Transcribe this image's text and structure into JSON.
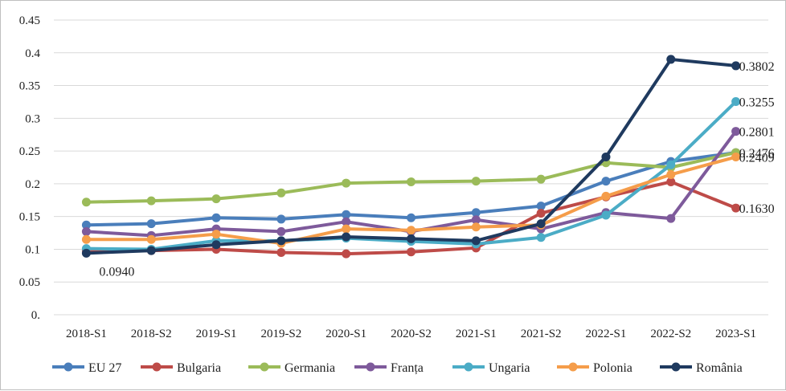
{
  "chart_data": {
    "type": "line",
    "title": "",
    "xlabel": "",
    "ylabel": "",
    "ylim": [
      0,
      0.45
    ],
    "y_ticks": [
      0,
      0.05,
      0.1,
      0.15,
      0.2,
      0.25,
      0.3,
      0.35,
      0.4,
      0.45
    ],
    "y_tick_labels": [
      "0.",
      "0.05",
      "0.1",
      "0.15",
      "0.2",
      "0.25",
      "0.3",
      "0.35",
      "0.4",
      "0.45"
    ],
    "grid": "horizontal",
    "legend_position": "bottom",
    "categories": [
      "2018-S1",
      "2018-S2",
      "2019-S1",
      "2019-S2",
      "2020-S1",
      "2020-S2",
      "2021-S1",
      "2021-S2",
      "2022-S1",
      "2022-S2",
      "2023-S1"
    ],
    "series": [
      {
        "name": "EU 27",
        "color": "#4a7ebb",
        "values": [
          0.137,
          0.139,
          0.148,
          0.146,
          0.153,
          0.148,
          0.156,
          0.166,
          0.204,
          0.234,
          0.2476
        ]
      },
      {
        "name": "Bulgaria",
        "color": "#be4b48",
        "values": [
          0.098,
          0.098,
          0.1,
          0.095,
          0.093,
          0.096,
          0.102,
          0.155,
          0.18,
          0.203,
          0.163
        ]
      },
      {
        "name": "Germania",
        "color": "#9bbb59",
        "values": [
          0.172,
          0.174,
          0.177,
          0.186,
          0.201,
          0.203,
          0.204,
          0.207,
          0.232,
          0.225,
          0.2476
        ]
      },
      {
        "name": "Franța",
        "color": "#7e5a9b",
        "values": [
          0.127,
          0.121,
          0.131,
          0.127,
          0.142,
          0.127,
          0.145,
          0.131,
          0.156,
          0.147,
          0.2801
        ]
      },
      {
        "name": "Ungaria",
        "color": "#4bacc6",
        "values": [
          0.101,
          0.1,
          0.113,
          0.113,
          0.117,
          0.112,
          0.108,
          0.118,
          0.152,
          0.229,
          0.3255
        ]
      },
      {
        "name": "Polonia",
        "color": "#f59d4a",
        "values": [
          0.115,
          0.115,
          0.123,
          0.109,
          0.131,
          0.129,
          0.134,
          0.137,
          0.181,
          0.214,
          0.2409
        ]
      },
      {
        "name": "România",
        "color": "#1f3a5f",
        "values": [
          0.094,
          0.098,
          0.107,
          0.113,
          0.119,
          0.116,
          0.113,
          0.139,
          0.241,
          0.39,
          0.3802
        ]
      }
    ],
    "data_labels": [
      {
        "series": "România",
        "index": 10,
        "text": "0.3802"
      },
      {
        "series": "Ungaria",
        "index": 10,
        "text": "0.3255"
      },
      {
        "series": "Franța",
        "index": 10,
        "text": "0.2801"
      },
      {
        "series": "EU 27",
        "index": 10,
        "text": "0.2476"
      },
      {
        "series": "Polonia",
        "index": 10,
        "text": "0.2409"
      },
      {
        "series": "Bulgaria",
        "index": 10,
        "text": "0.1630"
      },
      {
        "series": "România",
        "index": 0,
        "text": "0.0940"
      }
    ]
  }
}
